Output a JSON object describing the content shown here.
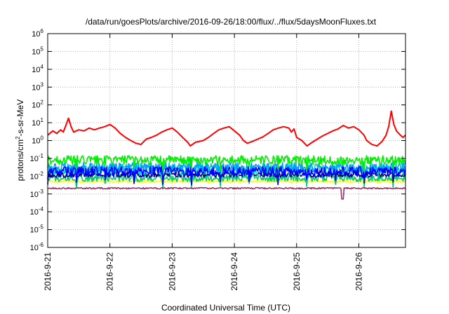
{
  "chart_data": {
    "type": "line",
    "title": "/data/run/goesPlots/archive/2016-09-26/18:00/flux/../flux/5daysMoonFluxes.txt",
    "xlabel": "Coordinated Universal Time (UTC)",
    "ylabel_base": "protons/cm",
    "ylabel_sup": "2",
    "ylabel_rest": "-s-sr-MeV",
    "x_start": "2016-09-21",
    "x_end": "2016-09-26T18:00",
    "x_ticks": [
      "2016-9-21",
      "2016-9-22",
      "2016-9-23",
      "2016-9-24",
      "2016-9-25",
      "2016-9-26"
    ],
    "y_scale": "log",
    "ylim": [
      1e-06,
      1000000.0
    ],
    "y_ticks": [
      {
        "base": "10",
        "exp": "6"
      },
      {
        "base": "10",
        "exp": "5"
      },
      {
        "base": "10",
        "exp": "4"
      },
      {
        "base": "10",
        "exp": "3"
      },
      {
        "base": "10",
        "exp": "2"
      },
      {
        "base": "10",
        "exp": "1"
      },
      {
        "base": "10",
        "exp": "0"
      },
      {
        "base": "10",
        "exp": "-1"
      },
      {
        "base": "10",
        "exp": "-2"
      },
      {
        "base": "10",
        "exp": "-3"
      },
      {
        "base": "10",
        "exp": "-4"
      },
      {
        "base": "10",
        "exp": "-5"
      },
      {
        "base": "10",
        "exp": "-6"
      }
    ],
    "grid": true,
    "series": [
      {
        "color": "#ff0000",
        "style": "line",
        "points": [
          [
            "2016-09-21T00:00",
            2.0
          ],
          [
            "2016-09-21T02:00",
            3.5
          ],
          [
            "2016-09-21T03:30",
            2.5
          ],
          [
            "2016-09-21T05:00",
            4.0
          ],
          [
            "2016-09-21T06:00",
            3.0
          ],
          [
            "2016-09-21T07:00",
            7.0
          ],
          [
            "2016-09-21T08:00",
            18.0
          ],
          [
            "2016-09-21T09:00",
            6.0
          ],
          [
            "2016-09-21T10:00",
            3.0
          ],
          [
            "2016-09-21T12:00",
            4.0
          ],
          [
            "2016-09-21T14:00",
            3.5
          ],
          [
            "2016-09-21T16:00",
            5.0
          ],
          [
            "2016-09-21T18:00",
            4.0
          ],
          [
            "2016-09-21T20:00",
            5.0
          ],
          [
            "2016-09-21T22:00",
            6.0
          ],
          [
            "2016-09-22T00:00",
            8.0
          ],
          [
            "2016-09-22T02:00",
            5.0
          ],
          [
            "2016-09-22T04:00",
            2.5
          ],
          [
            "2016-09-22T06:00",
            1.5
          ],
          [
            "2016-09-22T08:00",
            1.0
          ],
          [
            "2016-09-22T10:00",
            0.7
          ],
          [
            "2016-09-22T12:00",
            0.6
          ],
          [
            "2016-09-22T14:00",
            1.2
          ],
          [
            "2016-09-22T16:00",
            1.5
          ],
          [
            "2016-09-22T18:00",
            2.0
          ],
          [
            "2016-09-22T20:00",
            3.0
          ],
          [
            "2016-09-22T22:00",
            4.0
          ],
          [
            "2016-09-23T00:00",
            5.0
          ],
          [
            "2016-09-23T02:00",
            3.0
          ],
          [
            "2016-09-23T04:00",
            1.5
          ],
          [
            "2016-09-23T06:00",
            0.8
          ],
          [
            "2016-09-23T07:00",
            0.5
          ],
          [
            "2016-09-23T09:00",
            0.8
          ],
          [
            "2016-09-23T12:00",
            1.0
          ],
          [
            "2016-09-23T14:00",
            1.5
          ],
          [
            "2016-09-23T16:00",
            2.5
          ],
          [
            "2016-09-23T18:00",
            4.0
          ],
          [
            "2016-09-23T20:00",
            5.0
          ],
          [
            "2016-09-23T22:00",
            6.0
          ],
          [
            "2016-09-24T00:00",
            3.5
          ],
          [
            "2016-09-24T02:00",
            2.0
          ],
          [
            "2016-09-24T03:30",
            1.0
          ],
          [
            "2016-09-24T05:00",
            0.7
          ],
          [
            "2016-09-24T07:00",
            0.9
          ],
          [
            "2016-09-24T09:00",
            1.2
          ],
          [
            "2016-09-24T11:00",
            1.6
          ],
          [
            "2016-09-24T13:00",
            2.5
          ],
          [
            "2016-09-24T15:00",
            4.0
          ],
          [
            "2016-09-24T17:00",
            5.0
          ],
          [
            "2016-09-24T19:00",
            6.0
          ],
          [
            "2016-09-24T21:00",
            5.0
          ],
          [
            "2016-09-24T22:00",
            3.0
          ],
          [
            "2016-09-24T23:00",
            4.5
          ],
          [
            "2016-09-25T00:00",
            1.5
          ],
          [
            "2016-09-25T02:00",
            1.0
          ],
          [
            "2016-09-25T04:00",
            0.5
          ],
          [
            "2016-09-25T06:00",
            0.8
          ],
          [
            "2016-09-25T08:00",
            1.2
          ],
          [
            "2016-09-25T10:00",
            1.8
          ],
          [
            "2016-09-25T12:00",
            2.5
          ],
          [
            "2016-09-25T14:00",
            3.5
          ],
          [
            "2016-09-25T16:00",
            4.5
          ],
          [
            "2016-09-25T18:00",
            7.0
          ],
          [
            "2016-09-25T20:00",
            5.0
          ],
          [
            "2016-09-25T22:00",
            6.0
          ],
          [
            "2016-09-26T00:00",
            4.0
          ],
          [
            "2016-09-26T02:00",
            2.0
          ],
          [
            "2016-09-26T03:00",
            1.0
          ],
          [
            "2016-09-26T05:00",
            0.6
          ],
          [
            "2016-09-26T07:00",
            0.5
          ],
          [
            "2016-09-26T09:00",
            0.9
          ],
          [
            "2016-09-26T10:30",
            2.0
          ],
          [
            "2016-09-26T11:30",
            6.0
          ],
          [
            "2016-09-26T12:30",
            45.0
          ],
          [
            "2016-09-26T13:30",
            8.0
          ],
          [
            "2016-09-26T14:30",
            3.5
          ],
          [
            "2016-09-26T16:00",
            2.0
          ],
          [
            "2016-09-26T17:00",
            1.5
          ],
          [
            "2016-09-26T18:00",
            2.0
          ]
        ]
      },
      {
        "color": "#00ee00",
        "style": "band",
        "level": 0.08,
        "spread": 1.8
      },
      {
        "color": "#00c8c8",
        "style": "band",
        "level": 0.025,
        "spread": 2.2
      },
      {
        "color": "#00a0ff",
        "style": "band",
        "level": 0.03,
        "spread": 1.9
      },
      {
        "color": "#0000ff",
        "style": "band",
        "level": 0.018,
        "spread": 1.9
      },
      {
        "color": "#000080",
        "style": "band",
        "level": 0.012,
        "spread": 1.4
      },
      {
        "color": "#00cc66",
        "style": "band",
        "level": 0.008,
        "spread": 1.6
      },
      {
        "color": "#ffff00",
        "style": "band",
        "level": 0.005,
        "spread": 1.15
      },
      {
        "color": "#993366",
        "style": "band",
        "level": 0.0021,
        "spread": 1.1
      }
    ]
  }
}
